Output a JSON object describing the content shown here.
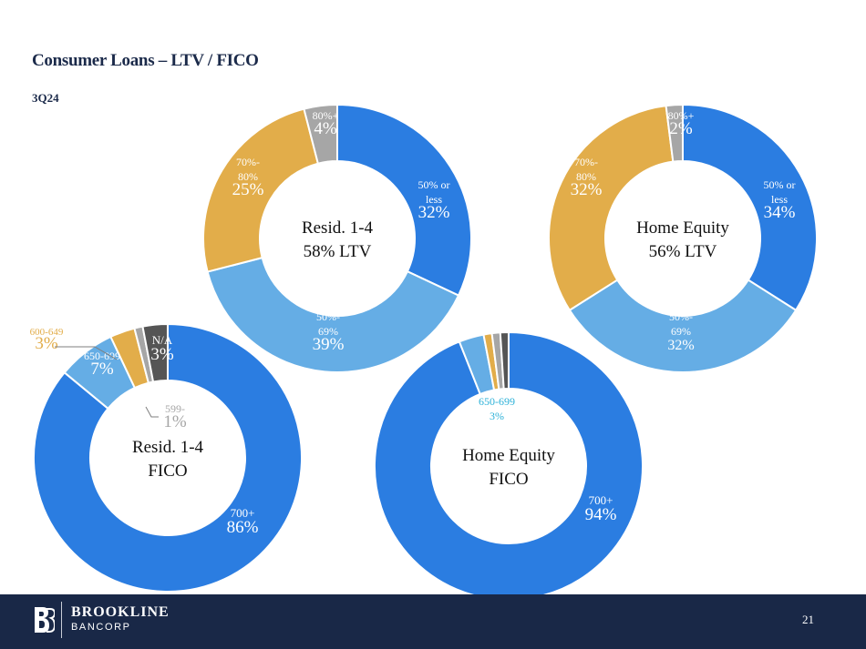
{
  "title": "Consumer Loans – LTV / FICO",
  "subtitle": "3Q24",
  "footer": {
    "brand_name": "BROOKLINE",
    "brand_sub": "BANCORP",
    "page_number": "21"
  },
  "colors": {
    "blue": "#2b7de1",
    "light_blue": "#65ade5",
    "gold": "#e2ad4a",
    "gray": "#a6a6a6",
    "dark_gray": "#555555",
    "navy": "#192847"
  },
  "chart_data": [
    {
      "type": "pie",
      "center_label": [
        "Resid. 1-4",
        "58% LTV"
      ],
      "slices": [
        {
          "label": "50% or less",
          "value": 32,
          "display": "32%",
          "color": "#2b7de1"
        },
        {
          "label": "50%-69%",
          "value": 39,
          "display": "39%",
          "color": "#65ade5"
        },
        {
          "label": "70%-80%",
          "value": 25,
          "display": "25%",
          "color": "#e2ad4a"
        },
        {
          "label": "80%+",
          "value": 4,
          "display": "4%",
          "color": "#a6a6a6"
        }
      ]
    },
    {
      "type": "pie",
      "center_label": [
        "Home Equity",
        "56% LTV"
      ],
      "slices": [
        {
          "label": "50% or less",
          "value": 34,
          "display": "34%",
          "color": "#2b7de1"
        },
        {
          "label": "50%-69%",
          "value": 32,
          "display": "32%",
          "color": "#65ade5"
        },
        {
          "label": "70%-80%",
          "value": 32,
          "display": "32%",
          "color": "#e2ad4a"
        },
        {
          "label": "80%+",
          "value": 2,
          "display": "2%",
          "color": "#a6a6a6"
        }
      ]
    },
    {
      "type": "pie",
      "center_label": [
        "Resid. 1-4",
        "FICO"
      ],
      "slices": [
        {
          "label": "700+",
          "value": 86,
          "display": "86%",
          "color": "#2b7de1"
        },
        {
          "label": "650-699",
          "value": 7,
          "display": "7%",
          "color": "#65ade5"
        },
        {
          "label": "600-649",
          "value": 3,
          "display": "3%",
          "color": "#e2ad4a"
        },
        {
          "label": "599-",
          "value": 1,
          "display": "1%",
          "color": "#a6a6a6"
        },
        {
          "label": "N/A",
          "value": 3,
          "display": "3%",
          "color": "#555555"
        }
      ]
    },
    {
      "type": "pie",
      "center_label": [
        "Home Equity",
        "FICO"
      ],
      "slices": [
        {
          "label": "700+",
          "value": 94,
          "display": "94%",
          "color": "#2b7de1"
        },
        {
          "label": "650-699",
          "value": 3,
          "display": "3%",
          "color": "#65ade5"
        },
        {
          "label": "",
          "value": 1,
          "display": "",
          "color": "#e2ad4a"
        },
        {
          "label": "",
          "value": 1,
          "display": "",
          "color": "#a6a6a6"
        },
        {
          "label": "",
          "value": 1,
          "display": "",
          "color": "#555555"
        }
      ]
    }
  ]
}
